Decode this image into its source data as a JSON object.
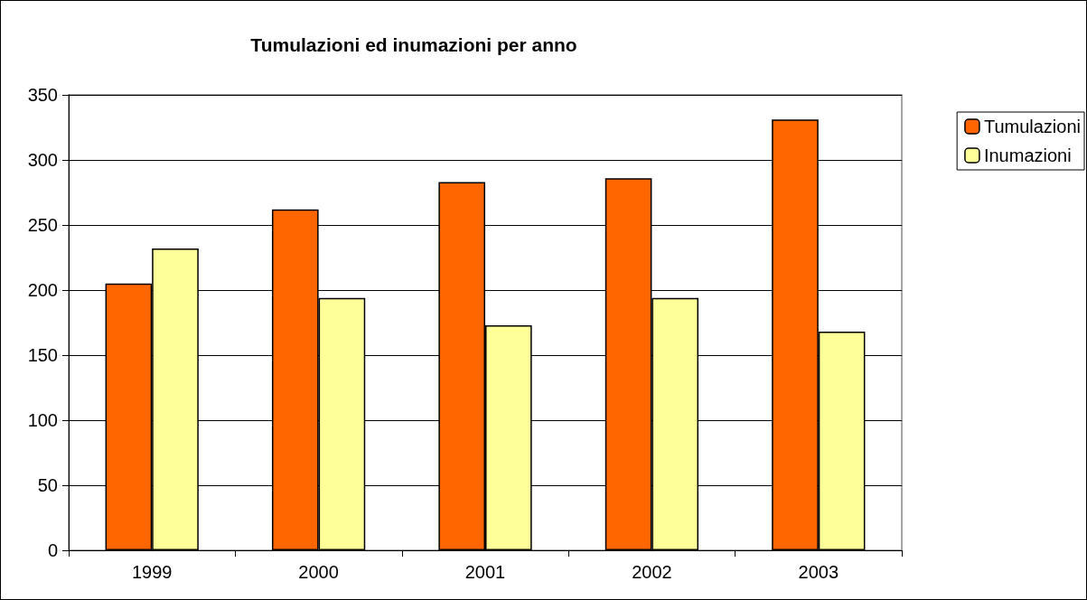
{
  "chart_data": {
    "type": "bar",
    "title": "Tumulazioni ed inumazioni per anno",
    "categories": [
      "1999",
      "2000",
      "2001",
      "2002",
      "2003"
    ],
    "series": [
      {
        "name": "Tumulazioni",
        "color": "#ff6600",
        "values": [
          205,
          262,
          283,
          286,
          331
        ]
      },
      {
        "name": "Inumazioni",
        "color": "#ffff99",
        "values": [
          232,
          194,
          173,
          194,
          168
        ]
      }
    ],
    "ylim": [
      0,
      350
    ],
    "yticks": [
      0,
      50,
      100,
      150,
      200,
      250,
      300,
      350
    ],
    "grid": "y",
    "legend": "top right"
  }
}
